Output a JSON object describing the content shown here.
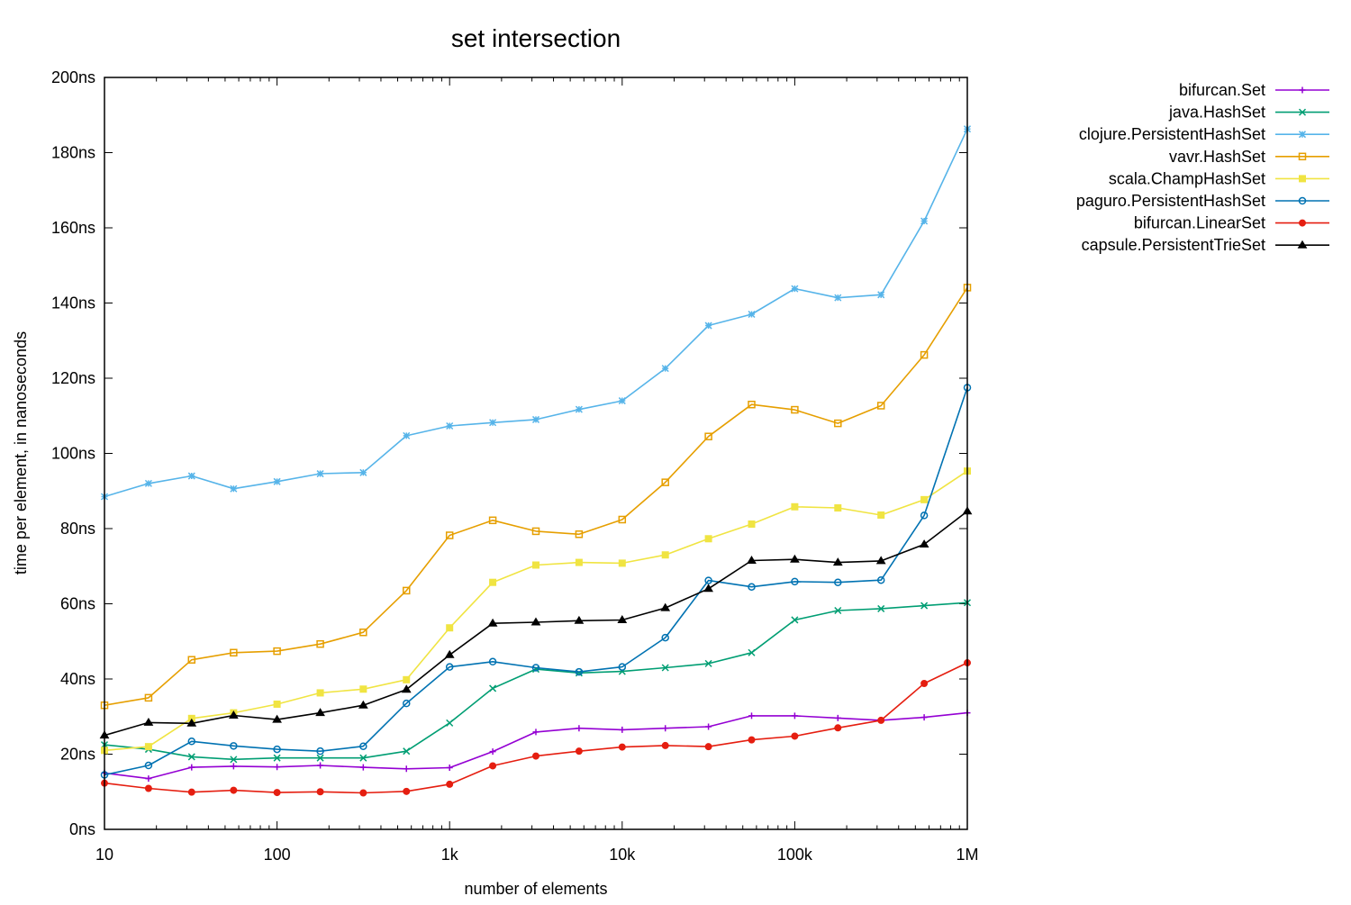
{
  "chart_data": {
    "type": "line",
    "title": "set intersection",
    "xlabel": "number of elements",
    "ylabel": "time per element, in nanoseconds",
    "xscale": "log",
    "xlim": [
      10,
      1000000
    ],
    "ylim": [
      0,
      200
    ],
    "grid": false,
    "legend_position": "top-right, outside plot",
    "x_ticks": [
      {
        "value": 10,
        "label": "10"
      },
      {
        "value": 100,
        "label": "100"
      },
      {
        "value": 1000,
        "label": "1k"
      },
      {
        "value": 10000,
        "label": "10k"
      },
      {
        "value": 100000,
        "label": "100k"
      },
      {
        "value": 1000000,
        "label": "1M"
      }
    ],
    "y_ticks": [
      {
        "value": 0,
        "label": "0ns"
      },
      {
        "value": 20,
        "label": "20ns"
      },
      {
        "value": 40,
        "label": "40ns"
      },
      {
        "value": 60,
        "label": "60ns"
      },
      {
        "value": 80,
        "label": "80ns"
      },
      {
        "value": 100,
        "label": "100ns"
      },
      {
        "value": 120,
        "label": "120ns"
      },
      {
        "value": 140,
        "label": "140ns"
      },
      {
        "value": 160,
        "label": "160ns"
      },
      {
        "value": 180,
        "label": "180ns"
      },
      {
        "value": 200,
        "label": "200ns"
      }
    ],
    "x": [
      10,
      18,
      32,
      56,
      100,
      178,
      316,
      562,
      1000,
      1778,
      3162,
      5623,
      10000,
      17783,
      31623,
      56234,
      100000,
      177828,
      316228,
      562341,
      1000000
    ],
    "series": [
      {
        "name": "bifurcan.Set",
        "color": "#9400d3",
        "marker": "plus",
        "values": [
          15,
          13.5,
          16.5,
          16.8,
          16.6,
          17,
          16.5,
          16.1,
          16.4,
          20.7,
          25.9,
          26.9,
          26.5,
          26.9,
          27.3,
          30.2,
          30.2,
          29.6,
          29,
          29.8,
          31
        ]
      },
      {
        "name": "java.HashSet",
        "color": "#009e73",
        "marker": "cross",
        "values": [
          22.5,
          21.3,
          19.3,
          18.6,
          19,
          19,
          19,
          20.8,
          28.3,
          37.5,
          42.6,
          41.6,
          42,
          43,
          44.1,
          47,
          55.7,
          58.2,
          58.7,
          59.5,
          60.3
        ]
      },
      {
        "name": "clojure.PersistentHashSet",
        "color": "#56b4e9",
        "marker": "star",
        "values": [
          88.5,
          92,
          94,
          90.6,
          92.5,
          94.6,
          94.9,
          104.7,
          107.3,
          108.2,
          109,
          111.7,
          114,
          122.6,
          134,
          137,
          143.8,
          141.4,
          142.2,
          161.8,
          186.3
        ]
      },
      {
        "name": "vavr.HashSet",
        "color": "#e69f00",
        "marker": "square",
        "values": [
          33,
          35,
          45.1,
          47,
          47.4,
          49.3,
          52.4,
          63.5,
          78.2,
          82.2,
          79.3,
          78.5,
          82.4,
          92.3,
          104.5,
          113,
          111.6,
          108,
          112.7,
          126.2,
          144.1
        ]
      },
      {
        "name": "scala.ChampHashSet",
        "color": "#f0e442",
        "marker": "filled-square",
        "values": [
          21,
          22,
          29.5,
          31,
          33.3,
          36.3,
          37.3,
          39.8,
          53.6,
          65.7,
          70.3,
          71,
          70.8,
          73,
          77.3,
          81.2,
          85.8,
          85.5,
          83.6,
          87.7,
          95.3
        ]
      },
      {
        "name": "paguro.PersistentHashSet",
        "color": "#0072b2",
        "marker": "circle",
        "values": [
          14.5,
          17,
          23.4,
          22.2,
          21.3,
          20.8,
          22.1,
          33.5,
          43.2,
          44.6,
          43,
          41.9,
          43.2,
          51,
          66.2,
          64.5,
          65.9,
          65.7,
          66.3,
          83.5,
          117.5
        ]
      },
      {
        "name": "bifurcan.LinearSet",
        "color": "#e51e10",
        "marker": "filled-circle",
        "values": [
          12.3,
          10.9,
          9.9,
          10.4,
          9.8,
          10,
          9.7,
          10.1,
          12,
          16.9,
          19.5,
          20.8,
          21.9,
          22.3,
          22,
          23.8,
          24.8,
          27,
          29,
          38.8,
          44.3
        ]
      },
      {
        "name": "capsule.PersistentTrieSet",
        "color": "#000000",
        "marker": "filled-triangle",
        "values": [
          25,
          28.4,
          28.2,
          30.3,
          29.2,
          31,
          33,
          37.2,
          46.4,
          54.8,
          55.1,
          55.5,
          55.7,
          58.9,
          64,
          71.5,
          71.8,
          71,
          71.4,
          75.8,
          84.6
        ]
      }
    ]
  }
}
